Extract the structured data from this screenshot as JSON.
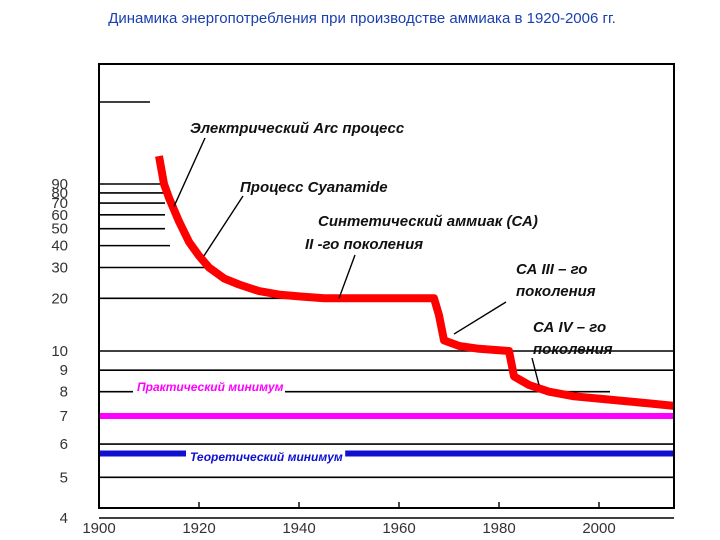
{
  "chart_data": {
    "type": "line",
    "title": "Динамика энергопотребления при производстве аммиака в 1920-2006 гг.",
    "xlabel": "",
    "ylabel": "",
    "x_ticks": [
      1900,
      1920,
      1940,
      1960,
      1980,
      2000
    ],
    "y_ticks": [
      4,
      5,
      6,
      7,
      8,
      9,
      10,
      20,
      30,
      40,
      50,
      60,
      70,
      80,
      90
    ],
    "xlim": [
      1900,
      2015
    ],
    "y_scale": "log",
    "ylim": [
      3.5,
      140
    ],
    "grid": "horizontal",
    "series": [
      {
        "name": "",
        "color": "#ff0000",
        "points": [
          [
            1912,
            130
          ],
          [
            1913,
            90
          ],
          [
            1914,
            75
          ],
          [
            1916,
            55
          ],
          [
            1918,
            42
          ],
          [
            1920,
            35
          ],
          [
            1922,
            30
          ],
          [
            1925,
            26
          ],
          [
            1928,
            24
          ],
          [
            1932,
            22
          ],
          [
            1936,
            21
          ],
          [
            1940,
            20.5
          ],
          [
            1945,
            20
          ],
          [
            1955,
            20
          ],
          [
            1967,
            20
          ],
          [
            1968,
            16
          ],
          [
            1969,
            11.5
          ],
          [
            1972,
            10.7
          ],
          [
            1976,
            10.3
          ],
          [
            1982,
            10
          ],
          [
            1983,
            8.7
          ],
          [
            1986,
            8.3
          ],
          [
            1990,
            8
          ],
          [
            1995,
            7.8
          ],
          [
            2000,
            7.7
          ],
          [
            2005,
            7.6
          ],
          [
            2010,
            7.5
          ],
          [
            2015,
            7.4
          ]
        ]
      }
    ],
    "reference_lines": [
      {
        "label": "Практический минимум",
        "value": 7,
        "color": "#ff00ff"
      },
      {
        "label": "Теоретический минимум",
        "value": 5.7,
        "color": "#1010d0"
      }
    ],
    "annotations": [
      {
        "text": "Электрический Arc процесс",
        "point": [
          1915,
          67
        ]
      },
      {
        "text": "Процесс Cyanamide",
        "point": [
          1921,
          35
        ]
      },
      {
        "text": "Синтетический аммиак (СА)",
        "point": null
      },
      {
        "text": "II -го поколения",
        "point": [
          1948,
          20
        ]
      },
      {
        "text": "СА  III – го",
        "point": null
      },
      {
        "text": "поколения",
        "point": [
          1971,
          12.5
        ]
      },
      {
        "text": "СА  IV – го",
        "point": null
      },
      {
        "text": "поколения",
        "point": [
          1988,
          8.3
        ]
      }
    ]
  }
}
